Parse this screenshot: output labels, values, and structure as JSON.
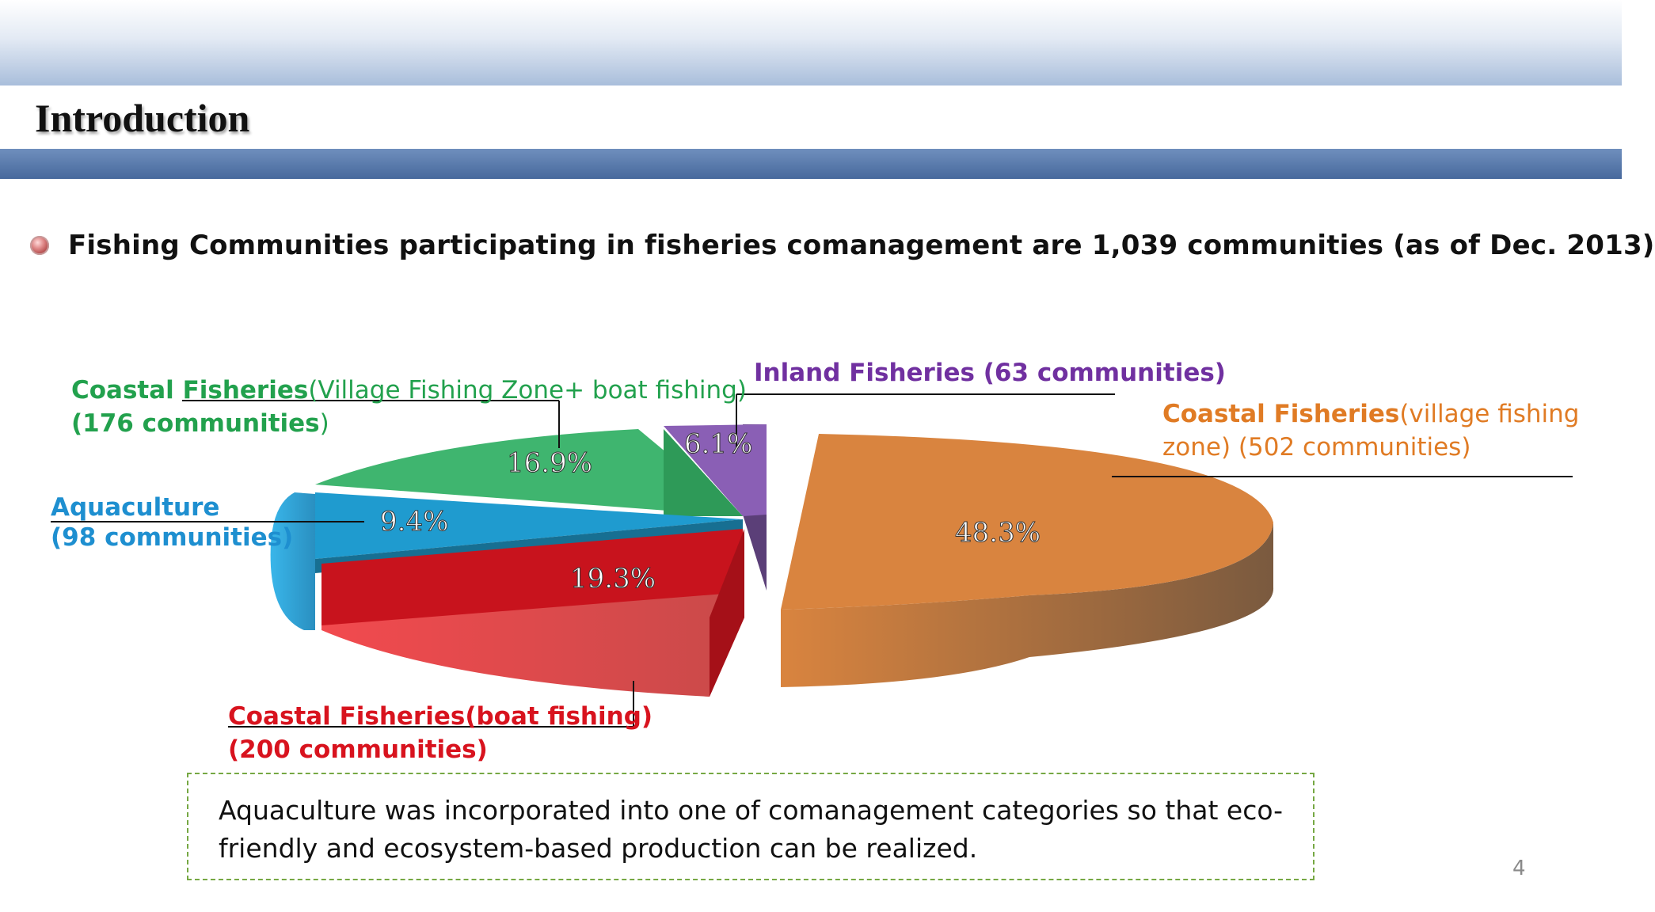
{
  "slide": {
    "title": "Introduction",
    "bullet": "Fishing Communities participating in fisheries comanagement are 1,039 communities (as of Dec. 2013)",
    "note": "Aquaculture was incorporated into one of comanagement  categories so that eco-friendly and ecosystem-based production can be realized.",
    "page_number": "4"
  },
  "labels": {
    "coastal_vfz_boat": {
      "bold": "Coastal Fisheries",
      "rest": "(Village Fishing Zone+ boat fishing)",
      "line2_bold": "(176 communities",
      "line2_rest": ")"
    },
    "aquaculture": {
      "line1": "Aquaculture",
      "line2": "(98 communities)"
    },
    "coastal_boat": {
      "line1": "Coastal Fisheries(boat fishing)",
      "line2": "(200 communities)"
    },
    "inland": {
      "text": "Inland Fisheries (63 communities)"
    },
    "coastal_vfz": {
      "bold": "Coastal Fisheries",
      "rest": "(village fishing",
      "line2": "zone) (502 communities)"
    }
  },
  "chart_data": {
    "type": "pie",
    "title": "",
    "slices": [
      {
        "name": "Coastal Fisheries(village fishing zone)",
        "communities": 502,
        "percent": 48.3,
        "label": "48.3%",
        "color": "#d9843f"
      },
      {
        "name": "Coastal Fisheries(boat fishing)",
        "communities": 200,
        "percent": 19.3,
        "label": "19.3%",
        "color": "#e23a3f"
      },
      {
        "name": "Aquaculture",
        "communities": 98,
        "percent": 9.4,
        "label": "9.4%",
        "color": "#2fa8dc"
      },
      {
        "name": "Coastal Fisheries(Village Fishing Zone+ boat fishing)",
        "communities": 176,
        "percent": 16.9,
        "label": "16.9%",
        "color": "#3fb56f"
      },
      {
        "name": "Inland Fisheries",
        "communities": 63,
        "percent": 6.1,
        "label": "6.1%",
        "color": "#8a5fb5"
      }
    ],
    "total_communities": 1039,
    "three_d": true
  }
}
